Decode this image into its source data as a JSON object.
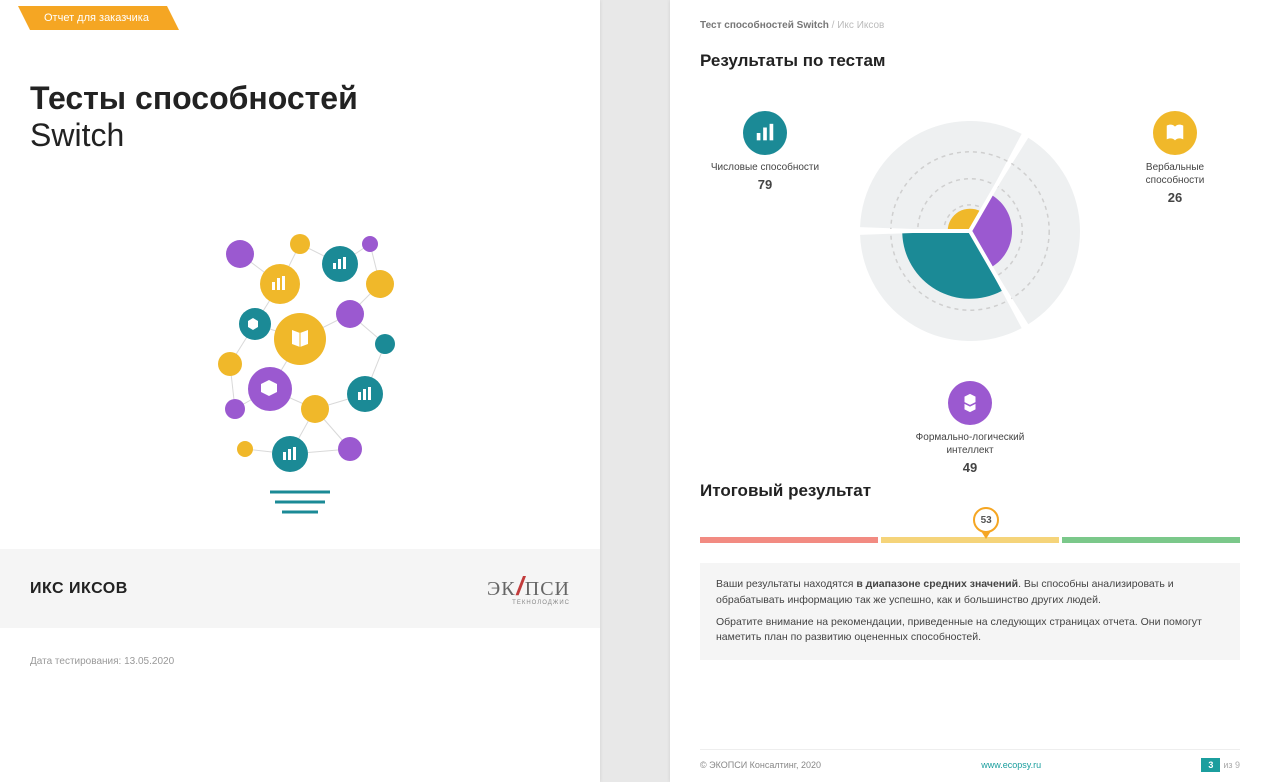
{
  "colors": {
    "accent_orange": "#f5a623",
    "teal": "#1b8a96",
    "purple": "#9b59d0",
    "yellow": "#f0b82a",
    "grey_bg": "#f5f5f5",
    "scale_red": "#f28b82",
    "scale_yel": "#f5d47a",
    "scale_grn": "#7bc88a"
  },
  "left": {
    "badge": "Отчет для заказчика",
    "title_bold": "Тесты способностей",
    "title_light": "Switch",
    "candidate": "ИКС ИКСОВ",
    "logo_left": "ЭК",
    "logo_right": "ПСИ",
    "logo_sub": "ТЕКНОЛОДЖИС",
    "date": "Дата тестирования: 13.05.2020"
  },
  "right": {
    "breadcrumb_bold": "Тест способностей Switch",
    "breadcrumb_grey": " / Икс Иксов",
    "section1": "Результаты по тестам",
    "metrics": {
      "numeric": {
        "label": "Числовые способности",
        "value": "79",
        "color": "#1b8a96",
        "icon": "bars"
      },
      "verbal": {
        "label": "Вербальные способности",
        "value": "26",
        "color": "#f0b82a",
        "icon": "book"
      },
      "logic": {
        "label": "Формально-логический интеллект",
        "value": "49",
        "color": "#9b59d0",
        "icon": "cubes"
      }
    },
    "radial": {
      "max": 100,
      "slices": [
        {
          "key": "numeric",
          "start": 150,
          "end": 270,
          "value": 79,
          "color": "#1b8a96"
        },
        {
          "key": "verbal",
          "start": 270,
          "end": 390,
          "value": 26,
          "color": "#f0b82a"
        },
        {
          "key": "logic",
          "start": 30,
          "end": 150,
          "value": 49,
          "color": "#9b59d0"
        }
      ],
      "ring_bg": "#eef0f1",
      "guide": "#cfcfcf"
    },
    "section2": "Итоговый результат",
    "final_score": "53",
    "final_pct": 53,
    "summary_p1_pre": "Ваши результаты находятся ",
    "summary_p1_bold": "в диапазоне средних значений",
    "summary_p1_post": ". Вы способны анализировать и обрабатывать информацию так же успешно, как и большинство других людей.",
    "summary_p2": "Обратите внимание на рекомендации, приведенные на следующих страницах отчета. Они помогут наметить план по развитию оцененных способностей.",
    "footer_copy": "© ЭКОПСИ Консалтинг, 2020",
    "footer_url": "www.ecopsy.ru",
    "page_cur": "3",
    "page_total": "из 9"
  }
}
